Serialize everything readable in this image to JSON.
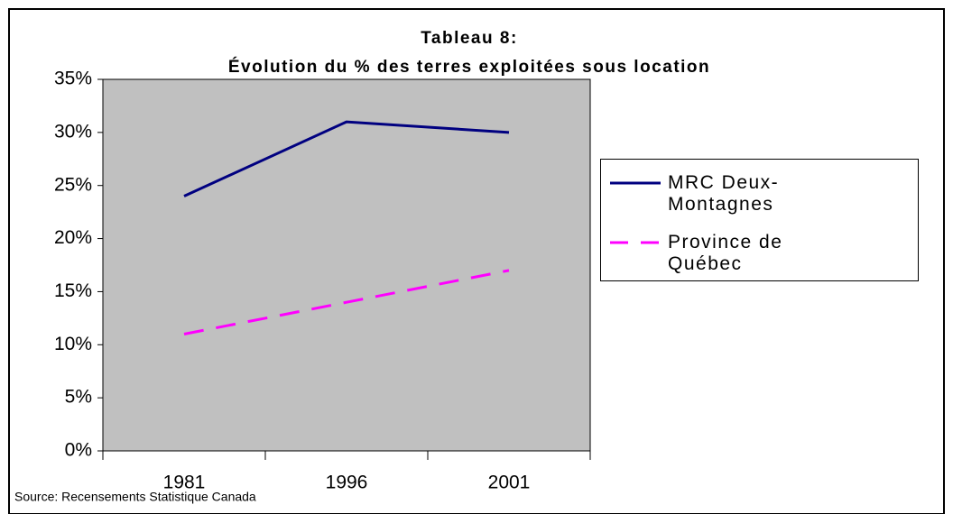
{
  "chart_data": {
    "type": "line",
    "title": "Tableau 8:",
    "subtitle": "Évolution du % des terres exploitées sous location",
    "source": "Source: Recensements Statistique Canada",
    "categories": [
      "1981",
      "1996",
      "2001"
    ],
    "series": [
      {
        "name": "MRC Deux-Montagnes",
        "color": "#000080",
        "dash": "solid",
        "values": [
          24,
          31,
          30
        ]
      },
      {
        "name": "Province de Québec",
        "color": "#ff00ff",
        "dash": "dashed",
        "values": [
          11,
          14,
          17
        ]
      }
    ],
    "ylim": [
      0,
      35
    ],
    "yticks": [
      {
        "value": 0,
        "label": "0%"
      },
      {
        "value": 5,
        "label": "5%"
      },
      {
        "value": 10,
        "label": "10%"
      },
      {
        "value": 15,
        "label": "15%"
      },
      {
        "value": 20,
        "label": "20%"
      },
      {
        "value": 25,
        "label": "25%"
      },
      {
        "value": 30,
        "label": "30%"
      },
      {
        "value": 35,
        "label": "35%"
      }
    ],
    "plot_background": "#c0c0c0",
    "legend": "right"
  }
}
